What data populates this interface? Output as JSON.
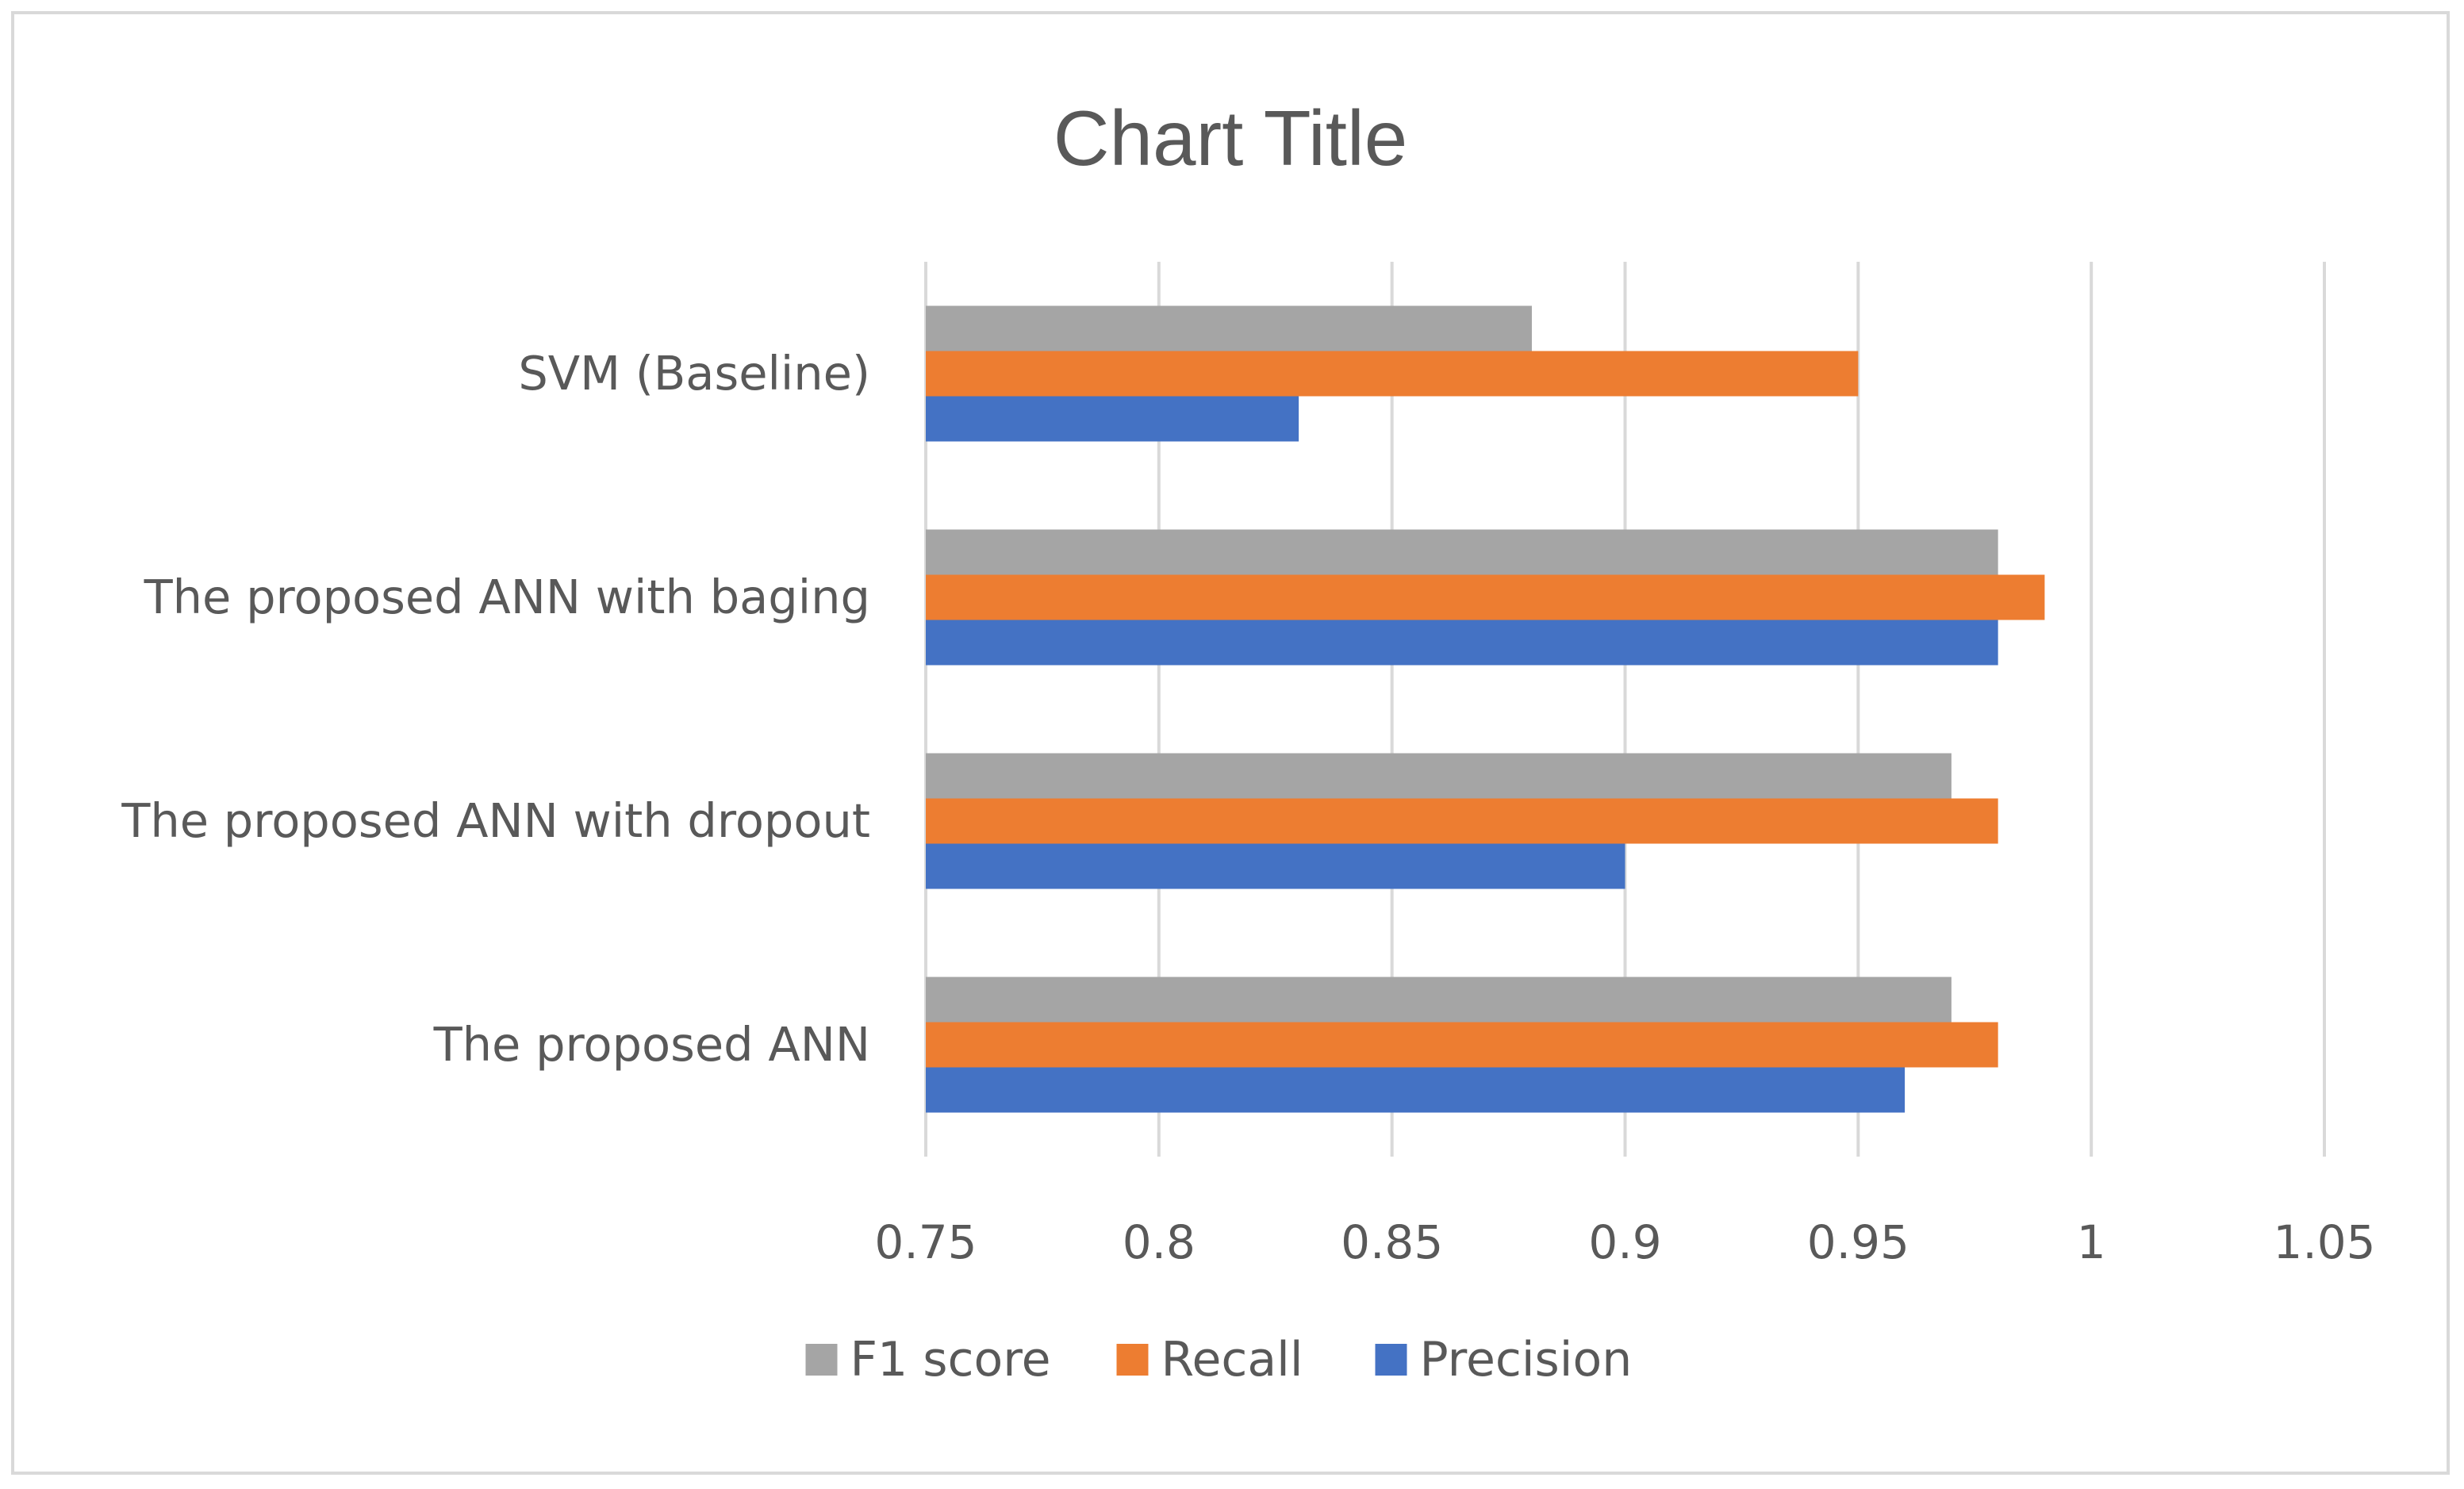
{
  "chart_data": {
    "type": "bar",
    "orientation": "horizontal",
    "title": "Chart Title",
    "categories": [
      "The proposed ANN",
      "The proposed ANN with dropout",
      "The proposed ANN with baging",
      "SVM (Baseline)"
    ],
    "series": [
      {
        "name": "Precision",
        "color": "#4472c4",
        "values": [
          0.96,
          0.9,
          0.98,
          0.83
        ]
      },
      {
        "name": "Recall",
        "color": "#ed7d31",
        "values": [
          0.98,
          0.98,
          0.99,
          0.95
        ]
      },
      {
        "name": "F1 score",
        "color": "#a5a5a5",
        "values": [
          0.97,
          0.97,
          0.98,
          0.88
        ]
      }
    ],
    "xlim": [
      0.75,
      1.05
    ],
    "xticks": [
      0.75,
      0.8,
      0.85,
      0.9,
      0.95,
      1,
      1.05
    ],
    "tick_labels": [
      "0.75",
      "0.8",
      "0.85",
      "0.9",
      "0.95",
      "1",
      "1.05"
    ],
    "xlabel": "",
    "ylabel": "",
    "grid": true,
    "legend": {
      "position": "bottom",
      "order": [
        "F1 score",
        "Recall",
        "Precision"
      ]
    }
  }
}
